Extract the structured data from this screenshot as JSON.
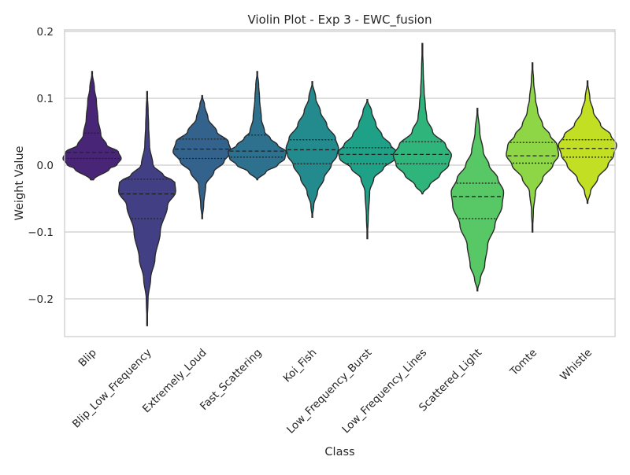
{
  "chart_data": {
    "type": "violin",
    "title": "Violin Plot - Exp 3 - EWC_fusion",
    "xlabel": "Class",
    "ylabel": "Weight Value",
    "ylim": [
      -0.26,
      0.205
    ],
    "yticks": [
      -0.2,
      -0.1,
      0.0,
      0.1,
      0.2
    ],
    "ytick_labels": [
      "−0.2",
      "−0.1",
      "0.0",
      "0.1",
      "0.2"
    ],
    "grid": true,
    "inner": "quartile",
    "palette": "viridis",
    "categories": [
      "Blip",
      "Blip_Low_Frequency",
      "Extremely_Loud",
      "Fast_Scattering",
      "Koi_Fish",
      "Low_Frequency_Burst",
      "Low_Frequency_Lines",
      "Scattered_Light",
      "Tomte",
      "Whistle"
    ],
    "colors": [
      "#482576",
      "#423f85",
      "#33638d",
      "#2d718e",
      "#238a8d",
      "#1fa187",
      "#2fb47c",
      "#58c765",
      "#8ed645",
      "#c2df23"
    ],
    "violins": [
      {
        "min": -0.022,
        "q1": 0.01,
        "median": 0.019,
        "q3": 0.048,
        "max": 0.14,
        "profile": [
          [
            -0.022,
            0.05
          ],
          [
            -0.005,
            0.6
          ],
          [
            0.0,
            0.85
          ],
          [
            0.01,
            1.0
          ],
          [
            0.02,
            0.9
          ],
          [
            0.03,
            0.5
          ],
          [
            0.045,
            0.3
          ],
          [
            0.07,
            0.2
          ],
          [
            0.095,
            0.15
          ],
          [
            0.115,
            0.08
          ],
          [
            0.14,
            0.0
          ]
        ]
      },
      {
        "min": -0.24,
        "q1": -0.08,
        "median": -0.043,
        "q3": -0.021,
        "max": 0.11,
        "profile": [
          [
            -0.24,
            0.0
          ],
          [
            -0.2,
            0.03
          ],
          [
            -0.17,
            0.12
          ],
          [
            -0.14,
            0.27
          ],
          [
            -0.1,
            0.45
          ],
          [
            -0.06,
            0.7
          ],
          [
            -0.04,
            0.98
          ],
          [
            -0.025,
            0.95
          ],
          [
            -0.015,
            0.55
          ],
          [
            0.0,
            0.2
          ],
          [
            0.03,
            0.08
          ],
          [
            0.06,
            0.05
          ],
          [
            0.08,
            0.035
          ],
          [
            0.11,
            0.0
          ]
        ]
      },
      {
        "min": -0.08,
        "q1": 0.01,
        "median": 0.024,
        "q3": 0.039,
        "max": 0.104,
        "profile": [
          [
            -0.08,
            0.0
          ],
          [
            -0.06,
            0.05
          ],
          [
            -0.03,
            0.12
          ],
          [
            -0.01,
            0.4
          ],
          [
            0.005,
            0.75
          ],
          [
            0.02,
            1.0
          ],
          [
            0.035,
            0.9
          ],
          [
            0.05,
            0.5
          ],
          [
            0.07,
            0.2
          ],
          [
            0.09,
            0.08
          ],
          [
            0.104,
            0.0
          ]
        ]
      },
      {
        "min": -0.022,
        "q1": 0.012,
        "median": 0.021,
        "q3": 0.045,
        "max": 0.14,
        "profile": [
          [
            -0.022,
            0.0
          ],
          [
            -0.01,
            0.3
          ],
          [
            0.0,
            0.7
          ],
          [
            0.01,
            0.95
          ],
          [
            0.02,
            1.0
          ],
          [
            0.03,
            0.7
          ],
          [
            0.04,
            0.45
          ],
          [
            0.05,
            0.25
          ],
          [
            0.07,
            0.14
          ],
          [
            0.1,
            0.08
          ],
          [
            0.12,
            0.05
          ],
          [
            0.14,
            0.0
          ]
        ]
      },
      {
        "min": -0.078,
        "q1": 0.002,
        "median": 0.023,
        "q3": 0.038,
        "max": 0.125,
        "profile": [
          [
            -0.078,
            0.0
          ],
          [
            -0.06,
            0.05
          ],
          [
            -0.04,
            0.18
          ],
          [
            -0.02,
            0.4
          ],
          [
            0.0,
            0.65
          ],
          [
            0.015,
            0.85
          ],
          [
            0.025,
            0.9
          ],
          [
            0.04,
            0.8
          ],
          [
            0.06,
            0.5
          ],
          [
            0.08,
            0.28
          ],
          [
            0.1,
            0.12
          ],
          [
            0.125,
            0.0
          ]
        ]
      },
      {
        "min": -0.11,
        "q1": 0.002,
        "median": 0.016,
        "q3": 0.026,
        "max": 0.098,
        "profile": [
          [
            -0.11,
            0.0
          ],
          [
            -0.08,
            0.03
          ],
          [
            -0.04,
            0.08
          ],
          [
            -0.02,
            0.22
          ],
          [
            -0.005,
            0.55
          ],
          [
            0.01,
            0.95
          ],
          [
            0.02,
            1.0
          ],
          [
            0.03,
            0.8
          ],
          [
            0.045,
            0.5
          ],
          [
            0.06,
            0.3
          ],
          [
            0.08,
            0.15
          ],
          [
            0.098,
            0.0
          ]
        ]
      },
      {
        "min": -0.043,
        "q1": 0.002,
        "median": 0.016,
        "q3": 0.035,
        "max": 0.182,
        "profile": [
          [
            -0.043,
            0.0
          ],
          [
            -0.03,
            0.25
          ],
          [
            -0.015,
            0.6
          ],
          [
            0.0,
            0.9
          ],
          [
            0.015,
            1.0
          ],
          [
            0.03,
            0.8
          ],
          [
            0.05,
            0.35
          ],
          [
            0.07,
            0.15
          ],
          [
            0.09,
            0.1
          ],
          [
            0.11,
            0.06
          ],
          [
            0.14,
            0.03
          ],
          [
            0.182,
            0.0
          ]
        ]
      },
      {
        "min": -0.188,
        "q1": -0.08,
        "median": -0.047,
        "q3": -0.027,
        "max": 0.085,
        "profile": [
          [
            -0.188,
            0.0
          ],
          [
            -0.17,
            0.1
          ],
          [
            -0.15,
            0.25
          ],
          [
            -0.12,
            0.35
          ],
          [
            -0.09,
            0.6
          ],
          [
            -0.06,
            0.85
          ],
          [
            -0.04,
            0.9
          ],
          [
            -0.02,
            0.7
          ],
          [
            0.0,
            0.4
          ],
          [
            0.02,
            0.2
          ],
          [
            0.05,
            0.08
          ],
          [
            0.085,
            0.0
          ]
        ]
      },
      {
        "min": -0.1,
        "q1": 0.003,
        "median": 0.014,
        "q3": 0.034,
        "max": 0.153,
        "profile": [
          [
            -0.1,
            0.0
          ],
          [
            -0.07,
            0.03
          ],
          [
            -0.04,
            0.1
          ],
          [
            -0.02,
            0.35
          ],
          [
            0.0,
            0.7
          ],
          [
            0.015,
            0.9
          ],
          [
            0.03,
            0.85
          ],
          [
            0.045,
            0.6
          ],
          [
            0.06,
            0.35
          ],
          [
            0.08,
            0.18
          ],
          [
            0.1,
            0.1
          ],
          [
            0.125,
            0.04
          ],
          [
            0.153,
            0.0
          ]
        ]
      },
      {
        "min": -0.057,
        "q1": 0.012,
        "median": 0.025,
        "q3": 0.038,
        "max": 0.126,
        "profile": [
          [
            -0.057,
            0.0
          ],
          [
            -0.04,
            0.1
          ],
          [
            -0.02,
            0.35
          ],
          [
            0.0,
            0.7
          ],
          [
            0.015,
            0.9
          ],
          [
            0.03,
            1.0
          ],
          [
            0.045,
            0.8
          ],
          [
            0.06,
            0.45
          ],
          [
            0.08,
            0.2
          ],
          [
            0.1,
            0.08
          ],
          [
            0.126,
            0.0
          ]
        ]
      }
    ]
  }
}
